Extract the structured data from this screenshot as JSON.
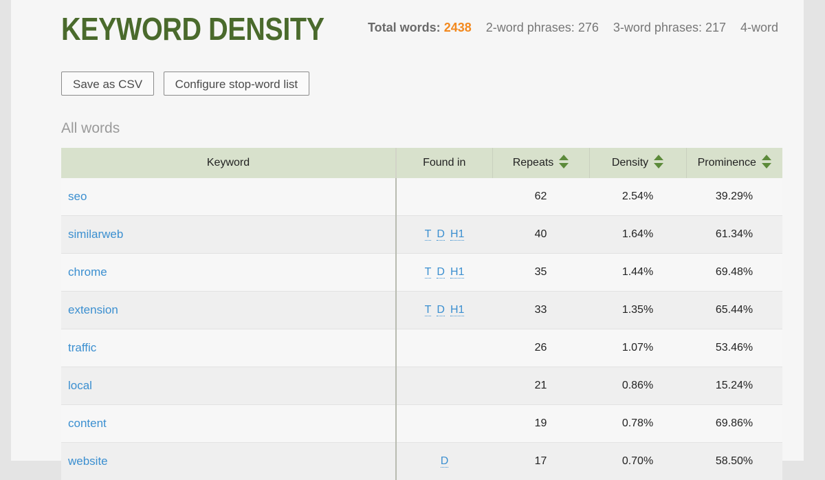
{
  "page": {
    "title": "KEYWORD DENSITY",
    "stats": {
      "total_words_label": "Total words:",
      "total_words_value": "2438",
      "two_word_label": "2-word phrases:",
      "two_word_value": "276",
      "three_word_label": "3-word phrases:",
      "three_word_value": "217",
      "four_word_label": "4-word"
    },
    "buttons": {
      "save_csv": "Save as CSV",
      "configure": "Configure stop-word list"
    },
    "section_title": "All words"
  },
  "table": {
    "headers": {
      "keyword": "Keyword",
      "found_in": "Found in",
      "repeats": "Repeats",
      "density": "Density",
      "prominence": "Prominence"
    },
    "rows": [
      {
        "keyword": "seo",
        "found": [],
        "repeats": "62",
        "density": "2.54%",
        "prominence": "39.29%"
      },
      {
        "keyword": "similarweb",
        "found": [
          "T",
          "D",
          "H1"
        ],
        "repeats": "40",
        "density": "1.64%",
        "prominence": "61.34%"
      },
      {
        "keyword": "chrome",
        "found": [
          "T",
          "D",
          "H1"
        ],
        "repeats": "35",
        "density": "1.44%",
        "prominence": "69.48%"
      },
      {
        "keyword": "extension",
        "found": [
          "T",
          "D",
          "H1"
        ],
        "repeats": "33",
        "density": "1.35%",
        "prominence": "65.44%"
      },
      {
        "keyword": "traffic",
        "found": [],
        "repeats": "26",
        "density": "1.07%",
        "prominence": "53.46%"
      },
      {
        "keyword": "local",
        "found": [],
        "repeats": "21",
        "density": "0.86%",
        "prominence": "15.24%"
      },
      {
        "keyword": "content",
        "found": [],
        "repeats": "19",
        "density": "0.78%",
        "prominence": "69.86%"
      },
      {
        "keyword": "website",
        "found": [
          "D"
        ],
        "repeats": "17",
        "density": "0.70%",
        "prominence": "58.50%"
      }
    ]
  },
  "colors": {
    "title": "#4a6a2c",
    "accent": "#f2891f",
    "link": "#3b8fd0",
    "header_bg": "#d8e1cc"
  }
}
